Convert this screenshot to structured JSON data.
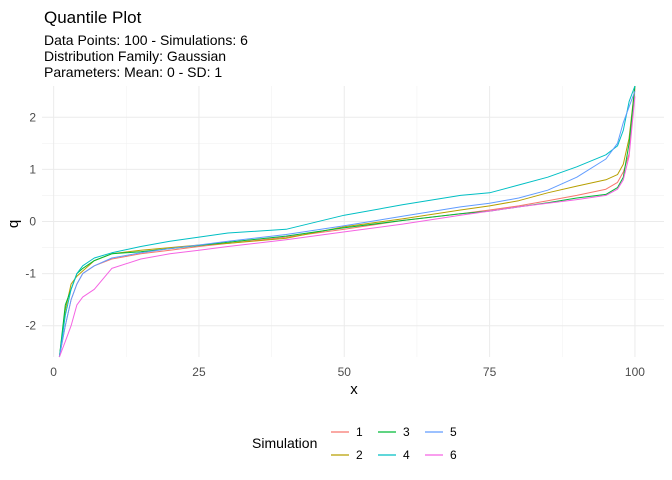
{
  "chart_data": {
    "type": "line",
    "title": "Quantile Plot",
    "subtitle": [
      "Data Points: 100 - Simulations: 6",
      "Distribution Family: Gaussian",
      "Parameters: Mean: 0 - SD: 1"
    ],
    "xlabel": "x",
    "ylabel": "q",
    "xlim": [
      -2,
      105
    ],
    "ylim": [
      -2.6,
      2.6
    ],
    "x_ticks": [
      0,
      25,
      50,
      75,
      100
    ],
    "y_ticks": [
      -2,
      -1,
      0,
      1,
      2
    ],
    "grid": true,
    "legend": {
      "title": "Simulation",
      "placement": "bottom",
      "entries": [
        "1",
        "2",
        "3",
        "4",
        "5",
        "6"
      ]
    },
    "colors": [
      "#F8766D",
      "#B79F00",
      "#00BA38",
      "#00BFC4",
      "#619CFF",
      "#F564E3"
    ],
    "series": [
      {
        "name": "1",
        "points": [
          [
            1,
            -2.6
          ],
          [
            2,
            -2.0
          ],
          [
            3,
            -1.5
          ],
          [
            4,
            -1.2
          ],
          [
            5,
            -1.0
          ],
          [
            7,
            -0.85
          ],
          [
            10,
            -0.72
          ],
          [
            15,
            -0.62
          ],
          [
            20,
            -0.55
          ],
          [
            25,
            -0.48
          ],
          [
            30,
            -0.42
          ],
          [
            40,
            -0.3
          ],
          [
            50,
            -0.15
          ],
          [
            60,
            0.02
          ],
          [
            70,
            0.15
          ],
          [
            75,
            0.22
          ],
          [
            80,
            0.3
          ],
          [
            85,
            0.4
          ],
          [
            90,
            0.5
          ],
          [
            95,
            0.62
          ],
          [
            97,
            0.75
          ],
          [
            98,
            0.95
          ],
          [
            99,
            1.3
          ],
          [
            100,
            2.55
          ]
        ]
      },
      {
        "name": "2",
        "points": [
          [
            1,
            -2.6
          ],
          [
            2,
            -1.7
          ],
          [
            3,
            -1.2
          ],
          [
            4,
            -1.05
          ],
          [
            5,
            -0.95
          ],
          [
            7,
            -0.75
          ],
          [
            10,
            -0.62
          ],
          [
            15,
            -0.55
          ],
          [
            20,
            -0.5
          ],
          [
            25,
            -0.45
          ],
          [
            30,
            -0.42
          ],
          [
            40,
            -0.32
          ],
          [
            50,
            -0.1
          ],
          [
            60,
            0.05
          ],
          [
            70,
            0.22
          ],
          [
            75,
            0.3
          ],
          [
            80,
            0.4
          ],
          [
            85,
            0.55
          ],
          [
            90,
            0.68
          ],
          [
            95,
            0.8
          ],
          [
            97,
            0.9
          ],
          [
            98,
            1.1
          ],
          [
            99,
            1.6
          ],
          [
            100,
            2.6
          ]
        ]
      },
      {
        "name": "3",
        "points": [
          [
            1,
            -2.6
          ],
          [
            2,
            -1.6
          ],
          [
            3,
            -1.3
          ],
          [
            4,
            -1.0
          ],
          [
            5,
            -0.9
          ],
          [
            7,
            -0.75
          ],
          [
            10,
            -0.62
          ],
          [
            15,
            -0.58
          ],
          [
            20,
            -0.52
          ],
          [
            25,
            -0.46
          ],
          [
            30,
            -0.4
          ],
          [
            40,
            -0.28
          ],
          [
            50,
            -0.12
          ],
          [
            60,
            0.02
          ],
          [
            70,
            0.15
          ],
          [
            75,
            0.2
          ],
          [
            80,
            0.28
          ],
          [
            85,
            0.36
          ],
          [
            90,
            0.45
          ],
          [
            95,
            0.52
          ],
          [
            97,
            0.65
          ],
          [
            98,
            0.85
          ],
          [
            99,
            1.5
          ],
          [
            100,
            2.6
          ]
        ]
      },
      {
        "name": "4",
        "points": [
          [
            1,
            -2.6
          ],
          [
            2,
            -1.8
          ],
          [
            3,
            -1.3
          ],
          [
            4,
            -1.0
          ],
          [
            5,
            -0.85
          ],
          [
            7,
            -0.7
          ],
          [
            10,
            -0.6
          ],
          [
            15,
            -0.48
          ],
          [
            20,
            -0.38
          ],
          [
            25,
            -0.3
          ],
          [
            30,
            -0.22
          ],
          [
            40,
            -0.15
          ],
          [
            50,
            0.12
          ],
          [
            60,
            0.32
          ],
          [
            70,
            0.5
          ],
          [
            75,
            0.55
          ],
          [
            80,
            0.7
          ],
          [
            85,
            0.85
          ],
          [
            90,
            1.05
          ],
          [
            95,
            1.28
          ],
          [
            97,
            1.45
          ],
          [
            98,
            1.75
          ],
          [
            99,
            2.3
          ],
          [
            100,
            2.6
          ]
        ]
      },
      {
        "name": "5",
        "points": [
          [
            1,
            -2.6
          ],
          [
            2,
            -2.0
          ],
          [
            3,
            -1.5
          ],
          [
            4,
            -1.2
          ],
          [
            5,
            -1.0
          ],
          [
            7,
            -0.85
          ],
          [
            10,
            -0.7
          ],
          [
            15,
            -0.6
          ],
          [
            20,
            -0.52
          ],
          [
            25,
            -0.45
          ],
          [
            30,
            -0.38
          ],
          [
            40,
            -0.25
          ],
          [
            50,
            -0.08
          ],
          [
            60,
            0.1
          ],
          [
            70,
            0.28
          ],
          [
            75,
            0.35
          ],
          [
            80,
            0.45
          ],
          [
            85,
            0.6
          ],
          [
            90,
            0.85
          ],
          [
            95,
            1.2
          ],
          [
            97,
            1.5
          ],
          [
            98,
            1.9
          ],
          [
            99,
            2.2
          ],
          [
            100,
            2.5
          ]
        ]
      },
      {
        "name": "6",
        "points": [
          [
            1,
            -2.6
          ],
          [
            2,
            -2.3
          ],
          [
            3,
            -2.0
          ],
          [
            4,
            -1.6
          ],
          [
            5,
            -1.45
          ],
          [
            7,
            -1.3
          ],
          [
            10,
            -0.9
          ],
          [
            15,
            -0.72
          ],
          [
            20,
            -0.62
          ],
          [
            25,
            -0.55
          ],
          [
            30,
            -0.48
          ],
          [
            40,
            -0.35
          ],
          [
            50,
            -0.2
          ],
          [
            60,
            -0.05
          ],
          [
            70,
            0.12
          ],
          [
            75,
            0.2
          ],
          [
            80,
            0.28
          ],
          [
            85,
            0.35
          ],
          [
            90,
            0.42
          ],
          [
            95,
            0.5
          ],
          [
            97,
            0.62
          ],
          [
            98,
            0.8
          ],
          [
            99,
            1.25
          ],
          [
            100,
            2.4
          ]
        ]
      }
    ]
  }
}
